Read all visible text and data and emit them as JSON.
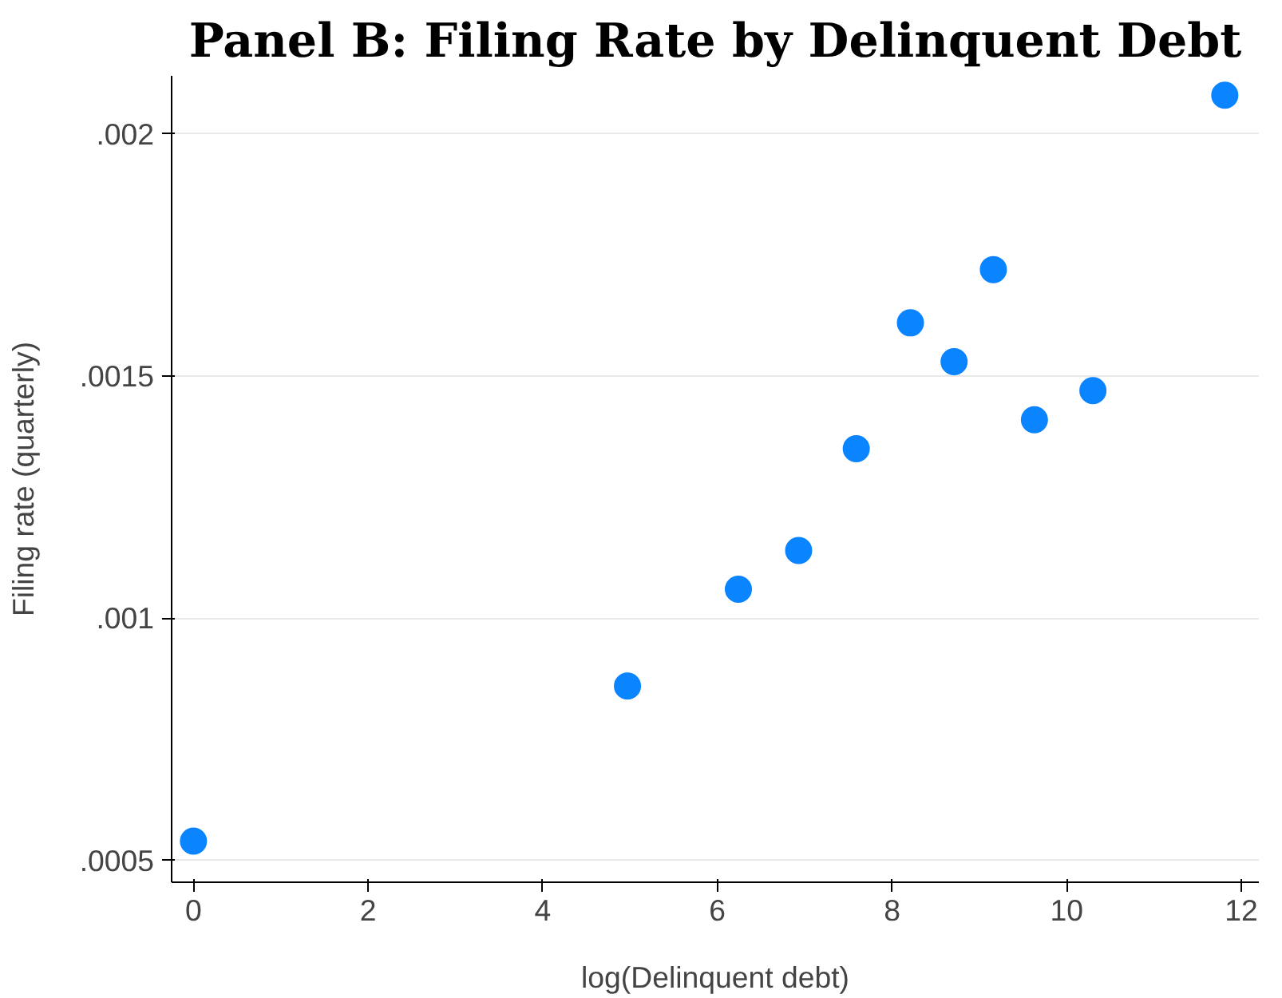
{
  "chart_data": {
    "type": "scatter",
    "title": "Panel B: Filing Rate by Delinquent Debt",
    "xlabel": "log(Delinquent debt)",
    "ylabel": "Filing rate (quarterly)",
    "x": [
      0,
      4.97,
      6.24,
      6.93,
      7.59,
      8.21,
      8.71,
      9.16,
      9.63,
      10.3,
      11.81
    ],
    "series": [
      {
        "color": "#0a84ff",
        "values": [
          0.00054,
          0.00086,
          0.00106,
          0.00114,
          0.00135,
          0.00161,
          0.00153,
          0.00172,
          0.00141,
          0.00147,
          0.00208
        ]
      }
    ],
    "xlim": [
      -0.25,
      12.2
    ],
    "ylim": [
      0.000455,
      0.00212
    ],
    "xticks": [
      0,
      2,
      4,
      6,
      8,
      10,
      12
    ],
    "yticks": [
      {
        "value": 0.0005,
        "label": ".0005"
      },
      {
        "value": 0.001,
        "label": ".001"
      },
      {
        "value": 0.0015,
        "label": ".0015"
      },
      {
        "value": 0.002,
        "label": ".002"
      }
    ],
    "grid": "y",
    "marker": "circle"
  }
}
